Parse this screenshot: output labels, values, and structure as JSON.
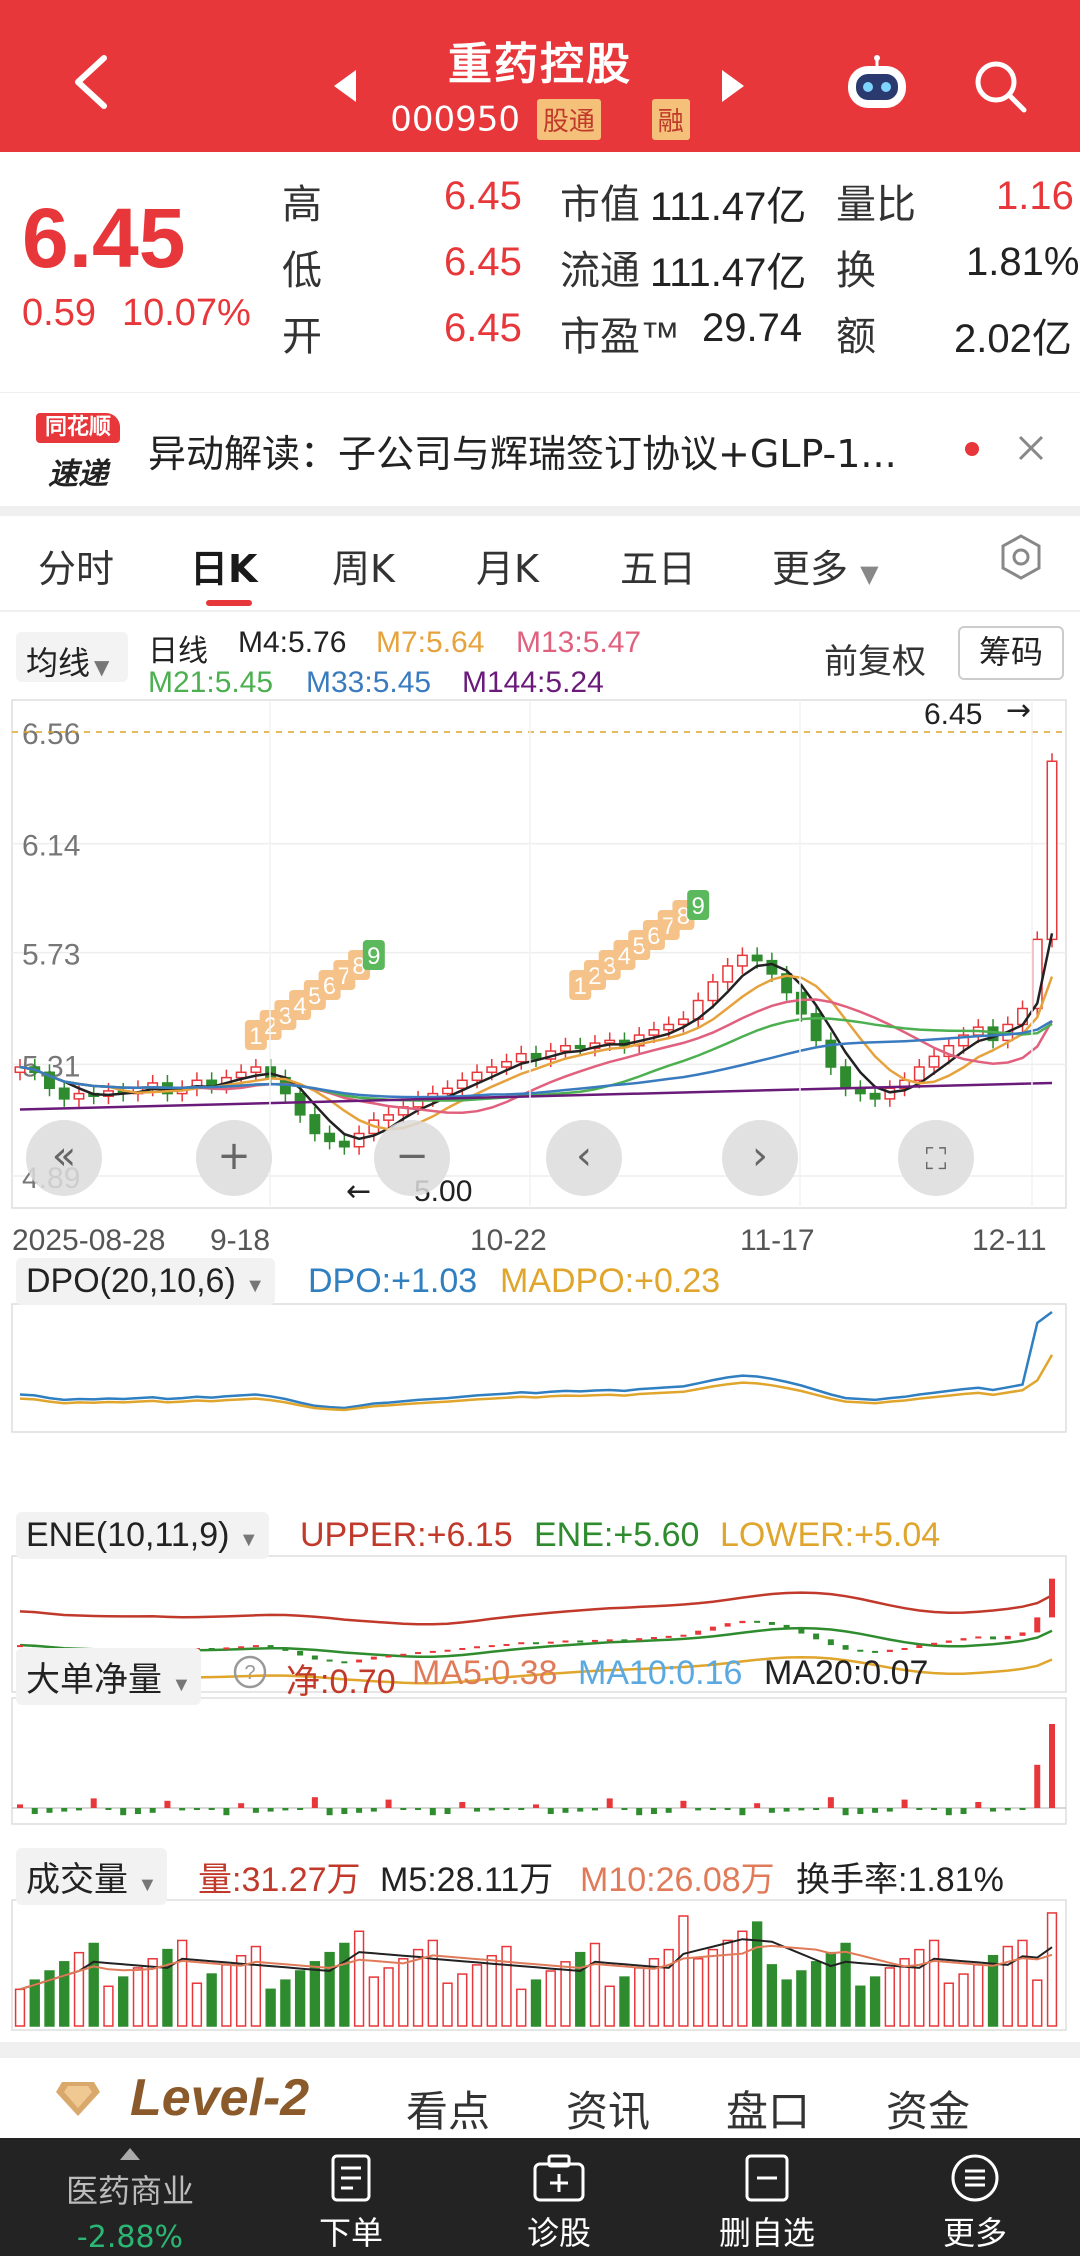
{
  "header": {
    "title": "重药控股",
    "code": "000950",
    "tag_connect": "股通",
    "tag_margin": "融"
  },
  "quote": {
    "price": "6.45",
    "change": "0.59",
    "change_pct": "10.07%",
    "high_label": "高",
    "high": "6.45",
    "low_label": "低",
    "low": "6.45",
    "open_label": "开",
    "open": "6.45",
    "mktcap_label": "市值",
    "mktcap": "111.47亿",
    "float_label": "流通",
    "float": "111.47亿",
    "pe_label": "市盈™",
    "pe": "29.74",
    "vr_label": "量比",
    "vr": "1.16",
    "turnover_label": "换",
    "turnover": "1.81%",
    "amount_label": "额",
    "amount": "2.02亿"
  },
  "news": {
    "logo_top": "同花顺",
    "logo_bottom": "速递",
    "text": "异动解读：子公司与辉瑞签订协议+GLP-1..."
  },
  "tabs": [
    "分时",
    "日K",
    "周K",
    "月K",
    "五日",
    "更多"
  ],
  "chart": {
    "ma_selector": "均线",
    "period": "日线",
    "fq": "前复权",
    "chips": "筹码",
    "ma": [
      {
        "label": "M4:5.76",
        "color": "#222222"
      },
      {
        "label": "M7:5.64",
        "color": "#e6a23c"
      },
      {
        "label": "M13:5.47",
        "color": "#e0607e"
      },
      {
        "label": "M21:5.45",
        "color": "#4caf50"
      },
      {
        "label": "M33:5.45",
        "color": "#3a7bbf"
      },
      {
        "label": "M144:5.24",
        "color": "#6a1b7a"
      }
    ],
    "y_ticks": [
      "6.56",
      "6.14",
      "5.73",
      "5.31",
      "4.89"
    ],
    "last_price_label": "6.45",
    "low_marker": "5.00",
    "x_ticks": [
      "2025-08-28",
      "9-18",
      "10-22",
      "11-17",
      "12-11"
    ],
    "count_marks": [
      "1",
      "2",
      "3",
      "4",
      "5",
      "6",
      "7",
      "8",
      "9",
      "1",
      "2",
      "3",
      "4",
      "5",
      "6",
      "7",
      "8",
      "9"
    ]
  },
  "chart_data": {
    "type": "candlestick",
    "x_range": [
      "2025-08-28",
      "2025-12-11"
    ],
    "ylim": [
      4.89,
      6.56
    ],
    "last_close": 6.45,
    "marked_low": 5.0,
    "ma": {
      "M4": 5.76,
      "M7": 5.64,
      "M13": 5.47,
      "M21": 5.45,
      "M33": 5.45,
      "M144": 5.24
    },
    "closes": [
      5.3,
      5.28,
      5.22,
      5.18,
      5.2,
      5.19,
      5.21,
      5.2,
      5.22,
      5.24,
      5.2,
      5.22,
      5.25,
      5.23,
      5.26,
      5.28,
      5.3,
      5.26,
      5.2,
      5.12,
      5.05,
      5.02,
      5.0,
      5.05,
      5.1,
      5.12,
      5.15,
      5.18,
      5.2,
      5.22,
      5.25,
      5.28,
      5.3,
      5.32,
      5.35,
      5.33,
      5.36,
      5.38,
      5.37,
      5.39,
      5.4,
      5.38,
      5.42,
      5.44,
      5.46,
      5.48,
      5.55,
      5.62,
      5.68,
      5.72,
      5.7,
      5.65,
      5.58,
      5.5,
      5.4,
      5.3,
      5.22,
      5.2,
      5.18,
      5.22,
      5.25,
      5.3,
      5.34,
      5.38,
      5.42,
      5.45,
      5.4,
      5.46,
      5.52,
      5.78,
      6.45
    ]
  },
  "panels": {
    "dpo": {
      "sel": "DPO(20,10,6)",
      "dpo": "DPO:+1.03",
      "madpo": "MADPO:+0.23"
    },
    "ene": {
      "sel": "ENE(10,11,9)",
      "upper": "UPPER:+6.15",
      "ene": "ENE:+5.60",
      "lower": "LOWER:+5.04"
    },
    "flow": {
      "sel": "大单净量",
      "net": "净:0.70",
      "ma5": "MA5:0.38",
      "ma10": "MA10:0.16",
      "ma20": "MA20:0.07"
    },
    "vol": {
      "sel": "成交量",
      "vol": "量:31.27万",
      "m5": "M5:28.11万",
      "m10": "M10:26.08万",
      "turn": "换手率:1.81%"
    }
  },
  "level2": {
    "title": "Level-2",
    "tabs": [
      "看点",
      "资讯",
      "盘口",
      "资金"
    ]
  },
  "bottom": {
    "sector_name": "医药商业",
    "sector_pct": "-2.88%",
    "items": [
      "下单",
      "诊股",
      "删自选",
      "更多"
    ]
  },
  "colors": {
    "brand": "#e8373a",
    "up": "#e8373a",
    "down": "#2e8b2e"
  }
}
